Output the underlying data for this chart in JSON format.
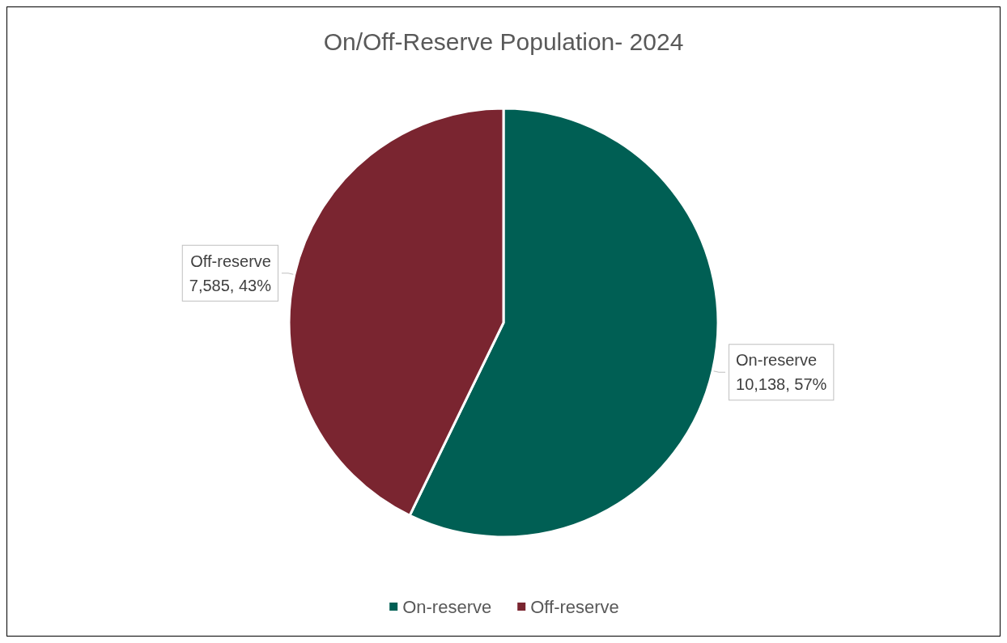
{
  "chart_data": {
    "type": "pie",
    "title": "On/Off-Reserve Population- 2024",
    "categories": [
      "On-reserve",
      "Off-reserve"
    ],
    "values": [
      10138,
      7585
    ],
    "colors": [
      "#005f54",
      "#7a2530"
    ],
    "value_labels": [
      "10,138, 57%",
      "7,585, 43%"
    ],
    "legend": "bottom"
  }
}
